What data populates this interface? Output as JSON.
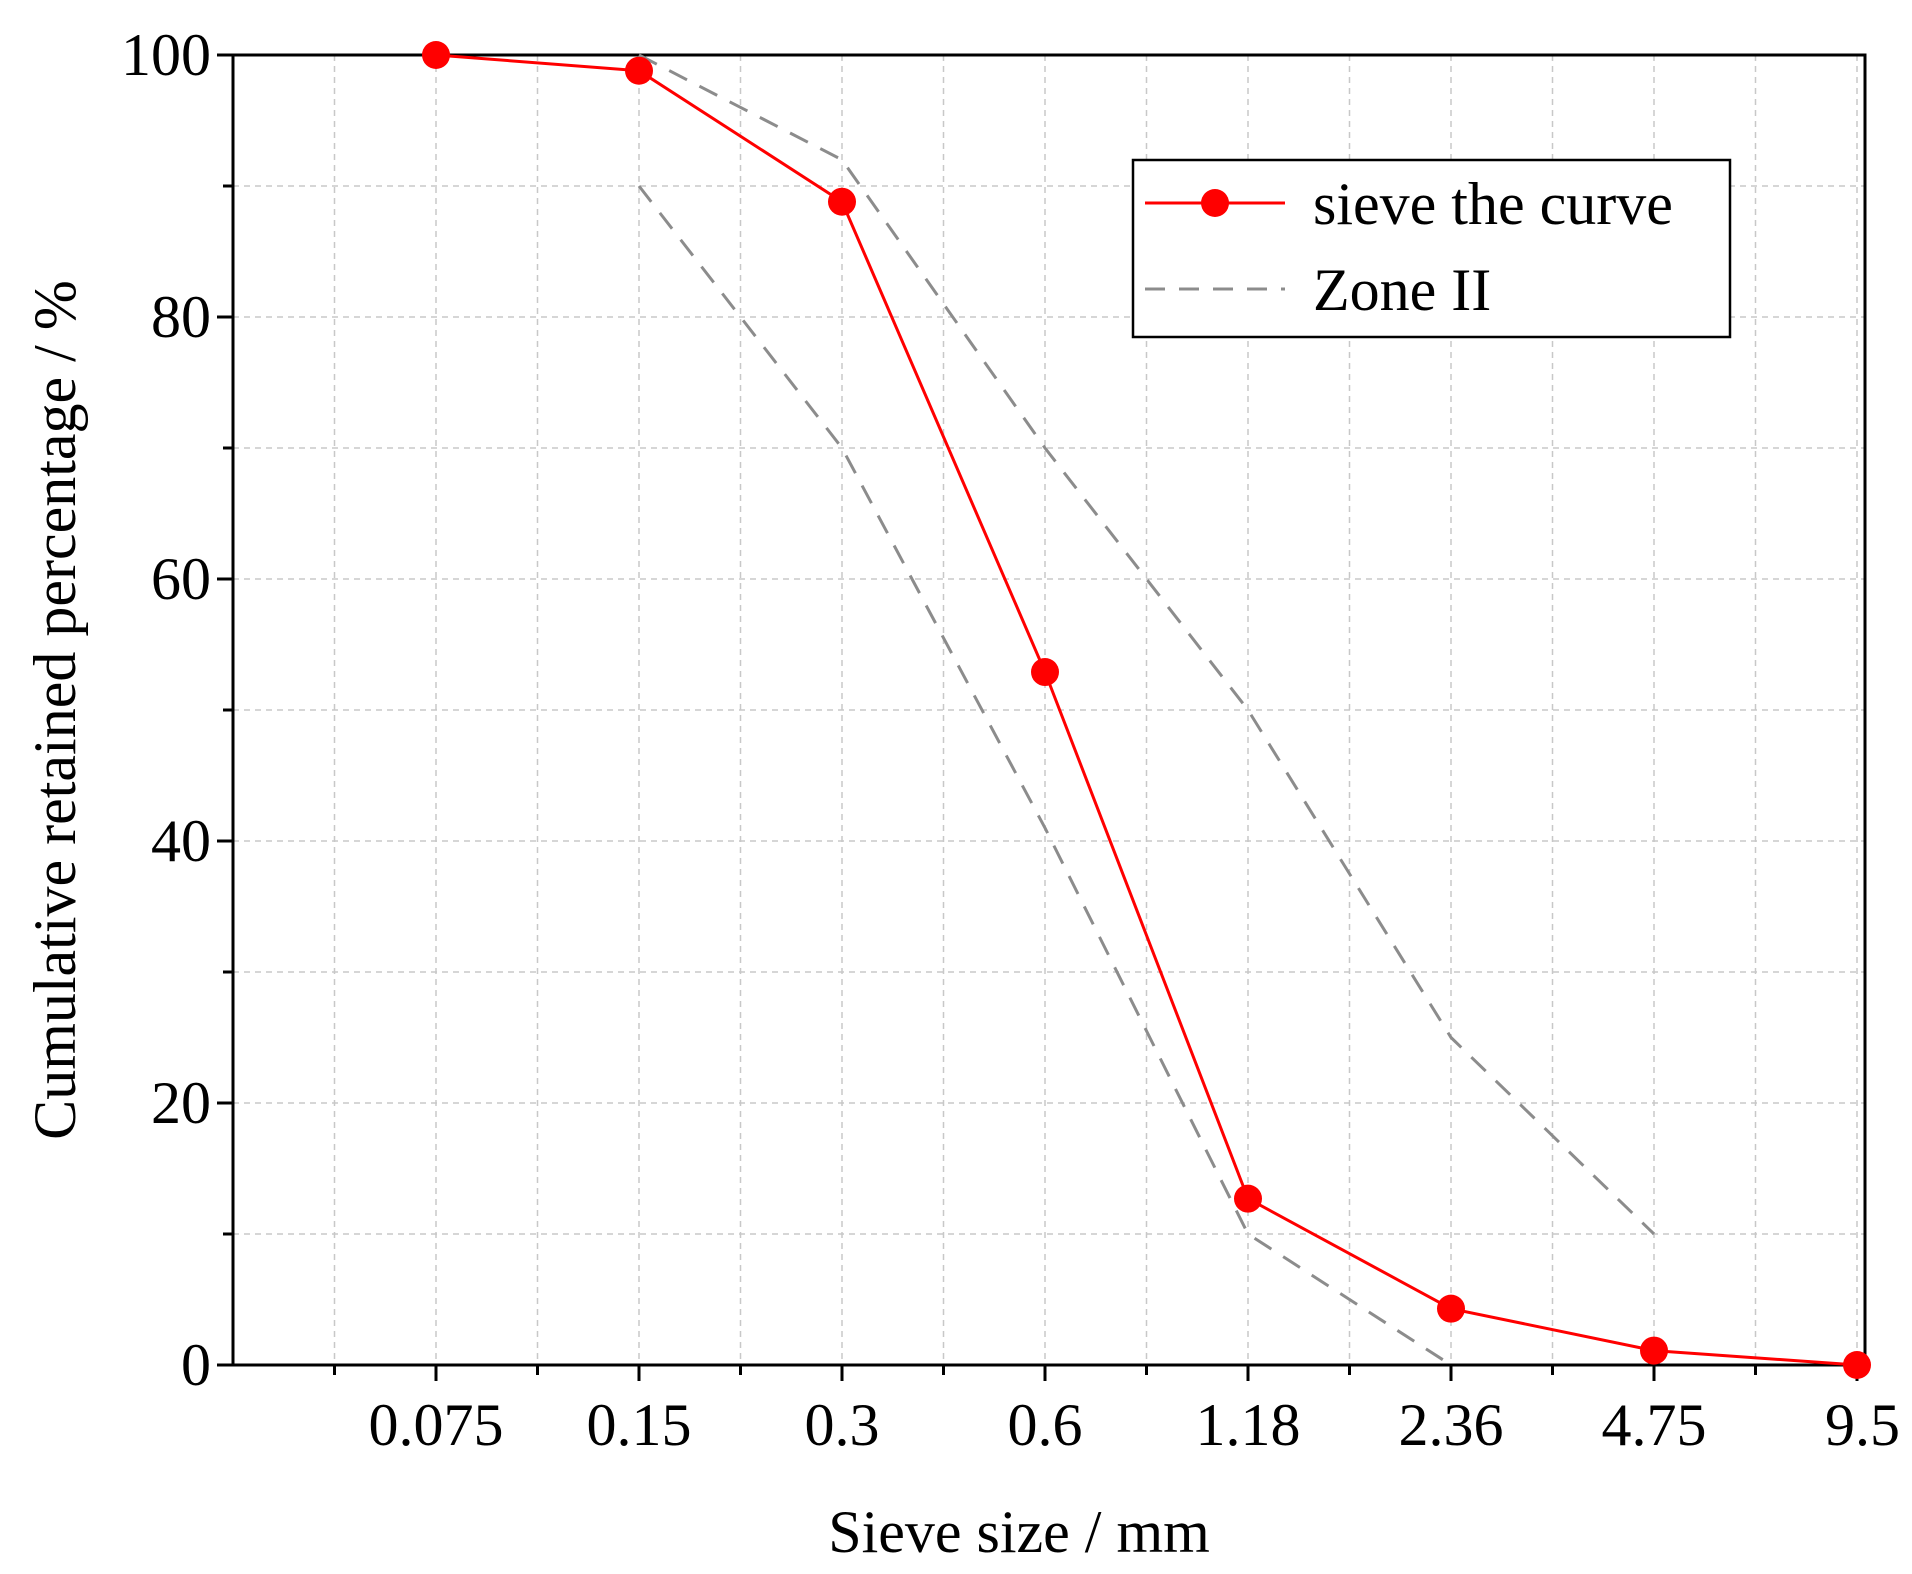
{
  "chart_data": {
    "type": "line",
    "title": "",
    "xlabel": "Sieve size / mm",
    "ylabel": "Cumulative retained percentage / %",
    "x_scale": "categorical",
    "categories": [
      "0.075",
      "0.15",
      "0.3",
      "0.6",
      "1.18",
      "2.36",
      "4.75",
      "9.5"
    ],
    "ylim": [
      0,
      100
    ],
    "yticks": [
      "0",
      "20",
      "40",
      "60",
      "80",
      "100"
    ],
    "y_minor_step": 10,
    "grid": true,
    "legend_position": "top-right",
    "series": [
      {
        "name": "sieve the curve",
        "style": "solid-with-markers",
        "color": "#ff0000",
        "values": [
          100,
          98.8,
          88.8,
          52.9,
          12.7,
          4.3,
          1.1,
          0
        ]
      },
      {
        "name": "Zone II",
        "style": "dashed",
        "color": "#8c8c8c",
        "envelope": {
          "upper": {
            "categories": [
              "0.15",
              "0.3",
              "0.6",
              "1.18",
              "2.36",
              "4.75"
            ],
            "values": [
              100,
              92,
              70,
              50,
              25,
              10
            ]
          },
          "lower": {
            "categories": [
              "0.15",
              "0.3",
              "0.6",
              "1.18",
              "2.36"
            ],
            "values": [
              90,
              70,
              41,
              10,
              0
            ]
          }
        }
      }
    ]
  }
}
